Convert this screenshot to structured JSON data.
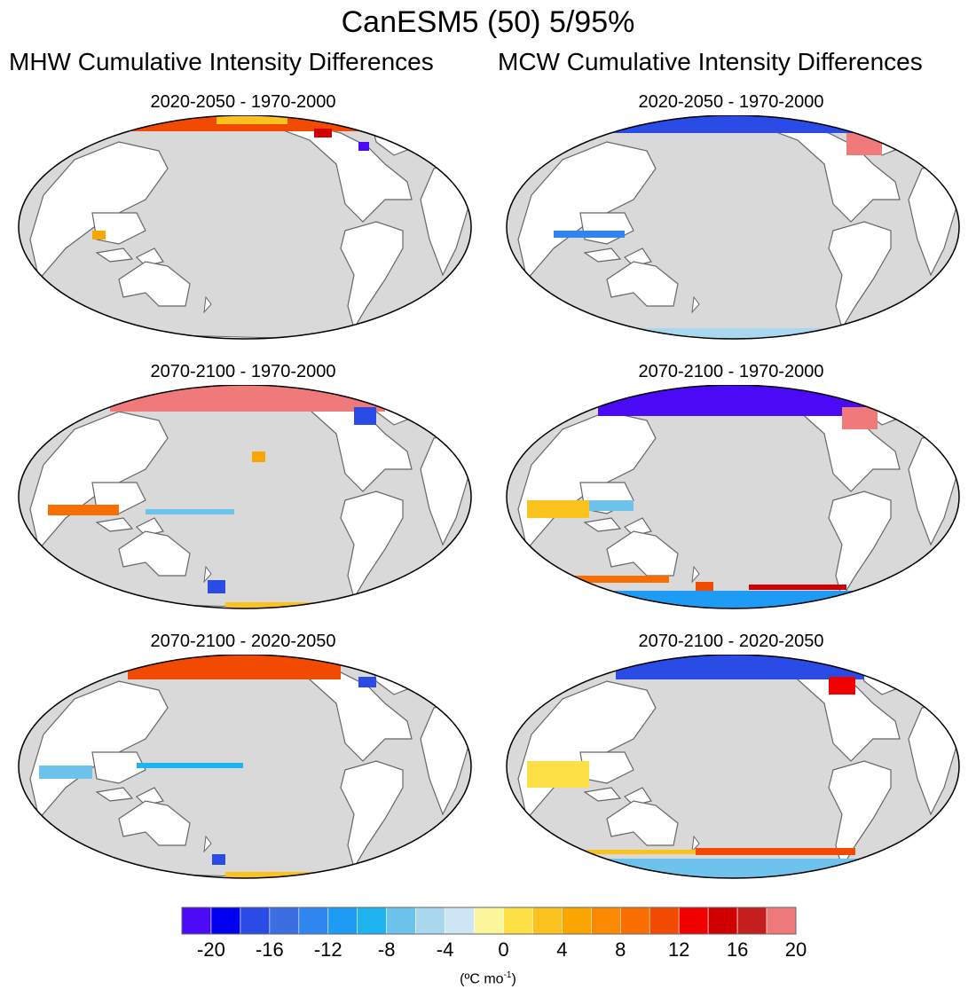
{
  "figure": {
    "title": "CanESM5 (50) 5/95%",
    "left_column_title": "MHW Cumulative Intensity Differences",
    "right_column_title": "MCW Cumulative Intensity Differences"
  },
  "panels": [
    {
      "title": "2020-2050 - 1970-2000"
    },
    {
      "title": "2070-2100 - 1970-2000"
    },
    {
      "title": "2070-2100 - 2020-2050"
    },
    {
      "title": "2020-2050 - 1970-2000"
    },
    {
      "title": "2070-2100 - 1970-2000"
    },
    {
      "title": "2070-2100 - 2020-2050"
    }
  ],
  "colorbar": {
    "colors": [
      "#4b0af5",
      "#0000f0",
      "#2a4be6",
      "#3b6ee0",
      "#2f86f0",
      "#1e9bf5",
      "#1eb4f0",
      "#6ec3ec",
      "#a9d7f0",
      "#cde6f6",
      "#fbf59b",
      "#fde046",
      "#fbc21e",
      "#f9a600",
      "#f98a00",
      "#f96e00",
      "#f24a00",
      "#f10000",
      "#d10000",
      "#c41e1e",
      "#f07a7a"
    ],
    "tick_labels": [
      "-20",
      "-16",
      "-12",
      "-8",
      "-4",
      "0",
      "4",
      "8",
      "12",
      "16",
      "20"
    ],
    "units_main": "(ºC mo",
    "units_sup": "-1",
    "units_close": ")"
  },
  "chart_data": {
    "type": "heatmap",
    "title": "CanESM5 (50) 5/95%",
    "variable": "Cumulative intensity difference",
    "units": "ºC mo-1",
    "value_range": [
      -22,
      22
    ],
    "colorbar_ticks": [
      -20,
      -16,
      -12,
      -8,
      -4,
      0,
      4,
      8,
      12,
      16,
      20
    ],
    "columns": [
      "MHW Cumulative Intensity Differences",
      "MCW Cumulative Intensity Differences"
    ],
    "rows": [
      "2020-2050 - 1970-2000",
      "2070-2100 - 1970-2000",
      "2070-2100 - 2020-2050"
    ]
  }
}
